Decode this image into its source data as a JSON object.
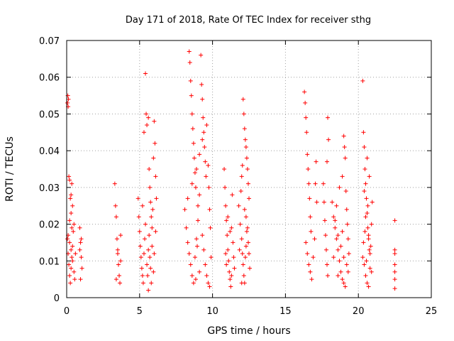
{
  "chart_data": {
    "type": "scatter",
    "title": "Day 171 of 2018, Rate Of TEC Index for receiver sthg",
    "xlabel": "GPS time / hours",
    "ylabel": "ROTI / TECUs",
    "xlim": [
      0,
      25
    ],
    "ylim": [
      0,
      0.07
    ],
    "xticks": [
      0,
      5,
      10,
      15,
      20,
      25
    ],
    "xtick_labels": [
      "0",
      "5",
      "10",
      "15",
      "20",
      "25"
    ],
    "yticks": [
      0,
      0.01,
      0.02,
      0.03,
      0.04,
      0.05,
      0.06,
      0.07
    ],
    "ytick_labels": [
      "0",
      "0.01",
      "0.02",
      "0.03",
      "0.04",
      "0.05",
      "0.06",
      "0.07"
    ],
    "grid": true,
    "marker": "+",
    "color": "#ff0000",
    "series": [
      {
        "name": "ROTI",
        "points": [
          [
            0.05,
            0.053
          ],
          [
            0.08,
            0.055
          ],
          [
            0.1,
            0.052
          ],
          [
            0.12,
            0.054
          ],
          [
            0.15,
            0.033
          ],
          [
            0.2,
            0.032
          ],
          [
            0.25,
            0.027
          ],
          [
            0.3,
            0.028
          ],
          [
            0.35,
            0.031
          ],
          [
            0.4,
            0.025
          ],
          [
            0.05,
            0.016
          ],
          [
            0.1,
            0.012
          ],
          [
            0.15,
            0.009
          ],
          [
            0.2,
            0.006
          ],
          [
            0.25,
            0.004
          ],
          [
            0.3,
            0.008
          ],
          [
            0.35,
            0.011
          ],
          [
            0.4,
            0.014
          ],
          [
            0.45,
            0.018
          ],
          [
            0.5,
            0.02
          ],
          [
            0.1,
            0.017
          ],
          [
            0.2,
            0.015
          ],
          [
            0.3,
            0.013
          ],
          [
            0.4,
            0.01
          ],
          [
            0.5,
            0.007
          ],
          [
            0.55,
            0.005
          ],
          [
            0.6,
            0.012
          ],
          [
            0.2,
            0.021
          ],
          [
            0.3,
            0.023
          ],
          [
            0.35,
            0.019
          ],
          [
            0.9,
            0.019
          ],
          [
            0.95,
            0.015
          ],
          [
            1.0,
            0.011
          ],
          [
            1.05,
            0.008
          ],
          [
            0.95,
            0.005
          ],
          [
            1.0,
            0.016
          ],
          [
            0.9,
            0.013
          ],
          [
            3.3,
            0.031
          ],
          [
            3.35,
            0.025
          ],
          [
            3.4,
            0.022
          ],
          [
            3.45,
            0.016
          ],
          [
            3.5,
            0.012
          ],
          [
            3.55,
            0.009
          ],
          [
            3.6,
            0.006
          ],
          [
            3.65,
            0.004
          ],
          [
            3.7,
            0.017
          ],
          [
            3.7,
            0.01
          ],
          [
            3.4,
            0.005
          ],
          [
            3.5,
            0.013
          ],
          [
            4.9,
            0.027
          ],
          [
            4.95,
            0.022
          ],
          [
            5.0,
            0.018
          ],
          [
            5.05,
            0.014
          ],
          [
            5.1,
            0.011
          ],
          [
            5.15,
            0.008
          ],
          [
            5.2,
            0.006
          ],
          [
            5.25,
            0.004
          ],
          [
            5.3,
            0.012
          ],
          [
            5.35,
            0.016
          ],
          [
            5.4,
            0.061
          ],
          [
            5.45,
            0.05
          ],
          [
            5.5,
            0.047
          ],
          [
            5.3,
            0.045
          ],
          [
            5.6,
            0.049
          ],
          [
            5.65,
            0.035
          ],
          [
            5.7,
            0.03
          ],
          [
            5.75,
            0.026
          ],
          [
            5.8,
            0.022
          ],
          [
            5.85,
            0.019
          ],
          [
            5.5,
            0.009
          ],
          [
            5.55,
            0.006
          ],
          [
            5.6,
            0.013
          ],
          [
            5.65,
            0.017
          ],
          [
            5.7,
            0.011
          ],
          [
            5.75,
            0.008
          ],
          [
            5.8,
            0.004
          ],
          [
            5.85,
            0.014
          ],
          [
            5.9,
            0.024
          ],
          [
            5.95,
            0.038
          ],
          [
            6.0,
            0.048
          ],
          [
            6.05,
            0.042
          ],
          [
            6.1,
            0.033
          ],
          [
            6.15,
            0.027
          ],
          [
            6.1,
            0.018
          ],
          [
            6.0,
            0.012
          ],
          [
            5.95,
            0.007
          ],
          [
            5.2,
            0.025
          ],
          [
            5.4,
            0.02
          ],
          [
            5.6,
            0.002
          ],
          [
            8.1,
            0.024
          ],
          [
            8.2,
            0.019
          ],
          [
            8.3,
            0.015
          ],
          [
            8.4,
            0.012
          ],
          [
            8.5,
            0.009
          ],
          [
            8.6,
            0.006
          ],
          [
            8.7,
            0.004
          ],
          [
            8.8,
            0.011
          ],
          [
            8.9,
            0.016
          ],
          [
            9.0,
            0.021
          ],
          [
            8.4,
            0.067
          ],
          [
            8.45,
            0.064
          ],
          [
            8.5,
            0.059
          ],
          [
            8.55,
            0.055
          ],
          [
            8.6,
            0.05
          ],
          [
            8.65,
            0.046
          ],
          [
            8.7,
            0.042
          ],
          [
            8.75,
            0.038
          ],
          [
            8.8,
            0.034
          ],
          [
            8.85,
            0.03
          ],
          [
            9.2,
            0.066
          ],
          [
            9.25,
            0.058
          ],
          [
            9.3,
            0.054
          ],
          [
            9.35,
            0.049
          ],
          [
            9.4,
            0.045
          ],
          [
            9.45,
            0.041
          ],
          [
            9.5,
            0.037
          ],
          [
            9.55,
            0.033
          ],
          [
            9.1,
            0.028
          ],
          [
            9.0,
            0.025
          ],
          [
            8.3,
            0.027
          ],
          [
            8.6,
            0.031
          ],
          [
            8.9,
            0.035
          ],
          [
            9.1,
            0.039
          ],
          [
            9.3,
            0.043
          ],
          [
            9.6,
            0.047
          ],
          [
            9.7,
            0.036
          ],
          [
            9.75,
            0.03
          ],
          [
            9.8,
            0.024
          ],
          [
            9.85,
            0.019
          ],
          [
            9.4,
            0.013
          ],
          [
            9.5,
            0.009
          ],
          [
            9.6,
            0.006
          ],
          [
            9.7,
            0.004
          ],
          [
            9.8,
            0.003
          ],
          [
            9.9,
            0.011
          ],
          [
            9.3,
            0.017
          ],
          [
            9.1,
            0.007
          ],
          [
            8.85,
            0.005
          ],
          [
            8.95,
            0.014
          ],
          [
            10.8,
            0.035
          ],
          [
            10.85,
            0.03
          ],
          [
            10.9,
            0.025
          ],
          [
            10.95,
            0.021
          ],
          [
            11.0,
            0.017
          ],
          [
            11.05,
            0.013
          ],
          [
            11.1,
            0.01
          ],
          [
            11.15,
            0.007
          ],
          [
            11.2,
            0.005
          ],
          [
            11.25,
            0.003
          ],
          [
            11.3,
            0.019
          ],
          [
            11.35,
            0.028
          ],
          [
            11.4,
            0.015
          ],
          [
            11.45,
            0.011
          ],
          [
            11.5,
            0.008
          ],
          [
            11.05,
            0.022
          ],
          [
            10.9,
            0.012
          ],
          [
            11.2,
            0.018
          ],
          [
            11.3,
            0.006
          ],
          [
            10.95,
            0.009
          ],
          [
            11.8,
            0.025
          ],
          [
            11.9,
            0.02
          ],
          [
            12.0,
            0.016
          ],
          [
            12.05,
            0.012
          ],
          [
            12.1,
            0.009
          ],
          [
            12.15,
            0.006
          ],
          [
            12.2,
            0.004
          ],
          [
            12.25,
            0.011
          ],
          [
            12.3,
            0.014
          ],
          [
            12.35,
            0.018
          ],
          [
            12.1,
            0.054
          ],
          [
            12.15,
            0.05
          ],
          [
            12.2,
            0.046
          ],
          [
            12.25,
            0.043
          ],
          [
            12.3,
            0.041
          ],
          [
            12.35,
            0.038
          ],
          [
            12.4,
            0.035
          ],
          [
            12.45,
            0.031
          ],
          [
            12.5,
            0.027
          ],
          [
            12.0,
            0.033
          ],
          [
            11.95,
            0.029
          ],
          [
            12.05,
            0.036
          ],
          [
            12.3,
            0.022
          ],
          [
            12.4,
            0.019
          ],
          [
            12.45,
            0.015
          ],
          [
            12.5,
            0.012
          ],
          [
            12.55,
            0.008
          ],
          [
            12.2,
            0.024
          ],
          [
            11.85,
            0.013
          ],
          [
            12.0,
            0.004
          ],
          [
            16.3,
            0.056
          ],
          [
            16.35,
            0.053
          ],
          [
            16.4,
            0.049
          ],
          [
            16.45,
            0.045
          ],
          [
            16.5,
            0.039
          ],
          [
            16.55,
            0.035
          ],
          [
            16.6,
            0.031
          ],
          [
            16.65,
            0.027
          ],
          [
            16.7,
            0.022
          ],
          [
            16.75,
            0.018
          ],
          [
            16.4,
            0.015
          ],
          [
            16.5,
            0.012
          ],
          [
            16.6,
            0.009
          ],
          [
            16.7,
            0.007
          ],
          [
            16.8,
            0.005
          ],
          [
            16.9,
            0.011
          ],
          [
            17.0,
            0.016
          ],
          [
            17.05,
            0.031
          ],
          [
            17.1,
            0.037
          ],
          [
            17.15,
            0.026
          ],
          [
            17.6,
            0.031
          ],
          [
            17.65,
            0.026
          ],
          [
            17.7,
            0.021
          ],
          [
            17.75,
            0.017
          ],
          [
            17.8,
            0.013
          ],
          [
            17.85,
            0.009
          ],
          [
            17.9,
            0.006
          ],
          [
            17.95,
            0.043
          ],
          [
            17.9,
            0.049
          ],
          [
            17.85,
            0.037
          ],
          [
            18.2,
            0.026
          ],
          [
            18.3,
            0.022
          ],
          [
            18.4,
            0.019
          ],
          [
            18.5,
            0.016
          ],
          [
            18.6,
            0.013
          ],
          [
            18.7,
            0.01
          ],
          [
            18.8,
            0.007
          ],
          [
            18.9,
            0.005
          ],
          [
            19.0,
            0.004
          ],
          [
            18.5,
            0.025
          ],
          [
            18.7,
            0.03
          ],
          [
            18.9,
            0.033
          ],
          [
            19.0,
            0.044
          ],
          [
            19.05,
            0.041
          ],
          [
            19.1,
            0.038
          ],
          [
            19.15,
            0.029
          ],
          [
            19.2,
            0.024
          ],
          [
            19.25,
            0.02
          ],
          [
            19.3,
            0.016
          ],
          [
            19.35,
            0.012
          ],
          [
            18.4,
            0.021
          ],
          [
            18.6,
            0.017
          ],
          [
            18.8,
            0.014
          ],
          [
            19.0,
            0.011
          ],
          [
            19.2,
            0.009
          ],
          [
            19.3,
            0.007
          ],
          [
            18.3,
            0.011
          ],
          [
            18.6,
            0.006
          ],
          [
            18.9,
            0.018
          ],
          [
            19.1,
            0.003
          ],
          [
            20.3,
            0.059
          ],
          [
            20.35,
            0.045
          ],
          [
            20.4,
            0.041
          ],
          [
            20.45,
            0.035
          ],
          [
            20.5,
            0.031
          ],
          [
            20.55,
            0.027
          ],
          [
            20.6,
            0.023
          ],
          [
            20.65,
            0.019
          ],
          [
            20.7,
            0.016
          ],
          [
            20.75,
            0.013
          ],
          [
            20.3,
            0.011
          ],
          [
            20.4,
            0.009
          ],
          [
            20.5,
            0.006
          ],
          [
            20.6,
            0.004
          ],
          [
            20.7,
            0.003
          ],
          [
            20.8,
            0.008
          ],
          [
            20.85,
            0.014
          ],
          [
            20.9,
            0.02
          ],
          [
            20.95,
            0.026
          ],
          [
            20.6,
            0.038
          ],
          [
            20.4,
            0.029
          ],
          [
            20.5,
            0.022
          ],
          [
            20.7,
            0.017
          ],
          [
            20.8,
            0.012
          ],
          [
            20.9,
            0.007
          ],
          [
            20.35,
            0.015
          ],
          [
            20.45,
            0.018
          ],
          [
            20.65,
            0.025
          ],
          [
            20.75,
            0.033
          ],
          [
            20.55,
            0.01
          ],
          [
            22.5,
            0.021
          ],
          [
            22.5,
            0.013
          ],
          [
            22.5,
            0.012
          ],
          [
            22.5,
            0.009
          ],
          [
            22.5,
            0.007
          ],
          [
            22.5,
            0.005
          ],
          [
            22.5,
            0.0025
          ]
        ]
      }
    ]
  }
}
